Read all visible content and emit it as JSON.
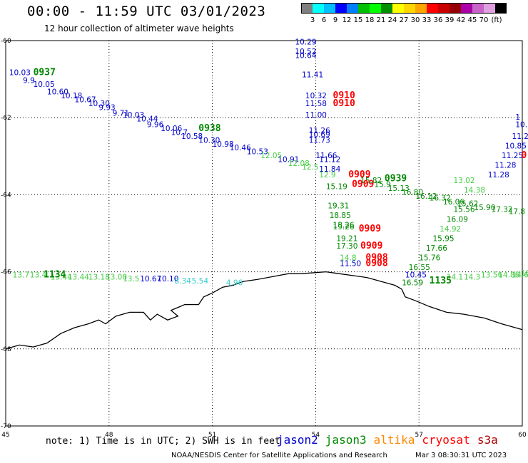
{
  "header": {
    "title": "00:00 - 11:59 UTC 03/01/2023",
    "subtitle": "12 hour collection of altimeter wave heights"
  },
  "colorbar": {
    "unit": "(ft)",
    "colors": [
      "#7f7f7f",
      "#00ffff",
      "#00bfff",
      "#0000ff",
      "#0080ff",
      "#00c000",
      "#00ff00",
      "#009000",
      "#ffff00",
      "#ffd700",
      "#ffa500",
      "#ff0000",
      "#c80000",
      "#960000",
      "#aa00aa",
      "#c864c8",
      "#e0a0e0",
      "#000000"
    ],
    "labels": [
      "3",
      "6",
      "9",
      "12",
      "15",
      "18",
      "21",
      "24",
      "27",
      "30",
      "33",
      "36",
      "39",
      "42",
      "45",
      "70"
    ]
  },
  "axes": {
    "lon_ticks": [
      "45",
      "48",
      "51",
      "54",
      "57",
      "60"
    ],
    "lat_ticks": [
      "-60",
      "-62",
      "-64",
      "-66",
      "-68",
      "-70"
    ]
  },
  "colors": {
    "jason2": "#0000cc",
    "jason3": "#008800",
    "jason3_light": "#44cc44",
    "altika": "#ff8800",
    "cryosat": "#ff0000",
    "s3a": "#aa0000",
    "cyan": "#33cccc"
  },
  "track_labels": [
    {
      "text": "10.03",
      "c": "jason2",
      "lon": 45.1,
      "lat": -60.9
    },
    {
      "text": "9.9",
      "c": "jason2",
      "lon": 45.5,
      "lat": -61.1
    },
    {
      "text": "10.05",
      "c": "jason2",
      "lon": 45.8,
      "lat": -61.2
    },
    {
      "text": "10.60",
      "c": "jason2",
      "lon": 46.2,
      "lat": -61.4
    },
    {
      "text": "10.18",
      "c": "jason2",
      "lon": 46.6,
      "lat": -61.5
    },
    {
      "text": "10.67",
      "c": "jason2",
      "lon": 47.0,
      "lat": -61.6
    },
    {
      "text": "10.30",
      "c": "jason2",
      "lon": 47.4,
      "lat": -61.7
    },
    {
      "text": "9.93",
      "c": "jason2",
      "lon": 47.7,
      "lat": -61.8
    },
    {
      "text": "9.71",
      "c": "jason2",
      "lon": 48.1,
      "lat": -61.95
    },
    {
      "text": "10.03",
      "c": "jason2",
      "lon": 48.4,
      "lat": -62.0
    },
    {
      "text": "10.44",
      "c": "jason2",
      "lon": 48.8,
      "lat": -62.1
    },
    {
      "text": "9.96",
      "c": "jason2",
      "lon": 49.1,
      "lat": -62.25
    },
    {
      "text": "10.06",
      "c": "jason2",
      "lon": 49.5,
      "lat": -62.35
    },
    {
      "text": "10.7",
      "c": "jason2",
      "lon": 49.8,
      "lat": -62.45
    },
    {
      "text": "10.58",
      "c": "jason2",
      "lon": 50.1,
      "lat": -62.55
    },
    {
      "text": "10.30",
      "c": "jason2",
      "lon": 50.6,
      "lat": -62.65
    },
    {
      "text": "10.98",
      "c": "jason2",
      "lon": 51.0,
      "lat": -62.75
    },
    {
      "text": "10.46",
      "c": "jason2",
      "lon": 51.5,
      "lat": -62.85
    },
    {
      "text": "10.53",
      "c": "jason2",
      "lon": 52.0,
      "lat": -62.95
    },
    {
      "text": "10.91",
      "c": "jason2",
      "lon": 52.9,
      "lat": -63.15
    },
    {
      "text": "12.05",
      "c": "jason3_light",
      "lon": 52.4,
      "lat": -63.05
    },
    {
      "text": "12.08",
      "c": "jason3_light",
      "lon": 53.2,
      "lat": -63.25
    },
    {
      "text": "12.5",
      "c": "jason3_light",
      "lon": 53.6,
      "lat": -63.35
    },
    {
      "text": "12.9",
      "c": "jason3_light",
      "lon": 54.1,
      "lat": -63.55
    },
    {
      "text": "10.29",
      "c": "jason2",
      "lon": 53.4,
      "lat": -60.1
    },
    {
      "text": "10.52",
      "c": "jason2",
      "lon": 53.4,
      "lat": -60.35
    },
    {
      "text": "10.64",
      "c": "jason2",
      "lon": 53.4,
      "lat": -60.45
    },
    {
      "text": "11.41",
      "c": "jason2",
      "lon": 53.6,
      "lat": -60.95
    },
    {
      "text": "10.32",
      "c": "jason2",
      "lon": 53.7,
      "lat": -61.5
    },
    {
      "text": "11.58",
      "c": "jason2",
      "lon": 53.7,
      "lat": -61.7
    },
    {
      "text": "11.00",
      "c": "jason2",
      "lon": 53.7,
      "lat": -62.0
    },
    {
      "text": "11.26",
      "c": "jason2",
      "lon": 53.8,
      "lat": -62.4
    },
    {
      "text": "10.69",
      "c": "jason2",
      "lon": 53.8,
      "lat": -62.5
    },
    {
      "text": "11.73",
      "c": "jason2",
      "lon": 53.8,
      "lat": -62.65
    },
    {
      "text": "11.66",
      "c": "jason2",
      "lon": 54.0,
      "lat": -63.05
    },
    {
      "text": "11.12",
      "c": "jason2",
      "lon": 54.1,
      "lat": -63.15
    },
    {
      "text": "11.84",
      "c": "jason2",
      "lon": 54.1,
      "lat": -63.4
    },
    {
      "text": "15.19",
      "c": "jason3",
      "lon": 54.3,
      "lat": -63.85
    },
    {
      "text": "19.31",
      "c": "jason3",
      "lon": 54.35,
      "lat": -64.35
    },
    {
      "text": "18.85",
      "c": "jason3",
      "lon": 54.4,
      "lat": -64.6
    },
    {
      "text": "18.26",
      "c": "jason3",
      "lon": 54.5,
      "lat": -64.85
    },
    {
      "text": "19.26",
      "c": "jason3",
      "lon": 54.5,
      "lat": -64.9
    },
    {
      "text": "19.21",
      "c": "jason3",
      "lon": 54.6,
      "lat": -65.2
    },
    {
      "text": "17.30",
      "c": "jason3",
      "lon": 54.6,
      "lat": -65.4
    },
    {
      "text": "14.8",
      "c": "jason3_light",
      "lon": 54.7,
      "lat": -65.7
    },
    {
      "text": "11.50",
      "c": "jason2",
      "lon": 54.7,
      "lat": -65.85
    },
    {
      "text": "15.82",
      "c": "jason3",
      "lon": 55.3,
      "lat": -63.7
    },
    {
      "text": "15.9",
      "c": "jason3",
      "lon": 55.7,
      "lat": -63.8
    },
    {
      "text": "15.13",
      "c": "jason3",
      "lon": 56.1,
      "lat": -63.9
    },
    {
      "text": "16.80",
      "c": "jason3",
      "lon": 56.5,
      "lat": -64.0
    },
    {
      "text": "16.12",
      "c": "jason3",
      "lon": 56.9,
      "lat": -64.1
    },
    {
      "text": "16.32",
      "c": "jason3",
      "lon": 57.3,
      "lat": -64.15
    },
    {
      "text": "16.06",
      "c": "jason3",
      "lon": 57.7,
      "lat": -64.25
    },
    {
      "text": "15.62",
      "c": "jason3",
      "lon": 58.1,
      "lat": -64.3
    },
    {
      "text": "15.56",
      "c": "jason3",
      "lon": 58.0,
      "lat": -64.45
    },
    {
      "text": "15.90",
      "c": "jason3",
      "lon": 58.6,
      "lat": -64.4
    },
    {
      "text": "17.32",
      "c": "jason3",
      "lon": 59.1,
      "lat": -64.45
    },
    {
      "text": "17.8",
      "c": "jason3",
      "lon": 59.6,
      "lat": -64.5
    },
    {
      "text": "14.38",
      "c": "jason3_light",
      "lon": 58.3,
      "lat": -63.95
    },
    {
      "text": "13.02",
      "c": "jason3_light",
      "lon": 58.0,
      "lat": -63.7
    },
    {
      "text": "16.09",
      "c": "jason3",
      "lon": 57.8,
      "lat": -64.7
    },
    {
      "text": "14.92",
      "c": "jason3_light",
      "lon": 57.6,
      "lat": -64.95
    },
    {
      "text": "15.95",
      "c": "jason3",
      "lon": 57.4,
      "lat": -65.2
    },
    {
      "text": "17.66",
      "c": "jason3",
      "lon": 57.2,
      "lat": -65.45
    },
    {
      "text": "15.76",
      "c": "jason3",
      "lon": 57.0,
      "lat": -65.7
    },
    {
      "text": "16.55",
      "c": "jason3",
      "lon": 56.7,
      "lat": -65.95
    },
    {
      "text": "10.45",
      "c": "jason2",
      "lon": 56.6,
      "lat": -66.15
    },
    {
      "text": "16.59",
      "c": "jason3",
      "lon": 56.5,
      "lat": -66.35
    },
    {
      "text": "11.28",
      "c": "jason2",
      "lon": 59.0,
      "lat": -63.55
    },
    {
      "text": "11.28",
      "c": "jason2",
      "lon": 59.2,
      "lat": -63.3
    },
    {
      "text": "11.25",
      "c": "jason2",
      "lon": 59.4,
      "lat": -63.05
    },
    {
      "text": "10.85",
      "c": "jason2",
      "lon": 59.5,
      "lat": -62.8
    },
    {
      "text": "11.2",
      "c": "jason2",
      "lon": 59.7,
      "lat": -62.55
    },
    {
      "text": "10.",
      "c": "jason2",
      "lon": 59.8,
      "lat": -62.25
    },
    {
      "text": "1",
      "c": "jason2",
      "lon": 59.8,
      "lat": -62.05
    },
    {
      "text": "13.7",
      "c": "jason3_light",
      "lon": 45.2,
      "lat": -66.15
    },
    {
      "text": "13.4",
      "c": "jason3_light",
      "lon": 45.7,
      "lat": -66.15
    },
    {
      "text": "13.44",
      "c": "jason3_light",
      "lon": 46.3,
      "lat": -66.2
    },
    {
      "text": "13.44",
      "c": "jason3_light",
      "lon": 46.8,
      "lat": -66.2
    },
    {
      "text": "13.18",
      "c": "jason3_light",
      "lon": 47.4,
      "lat": -66.2
    },
    {
      "text": "13.00",
      "c": "jason3_light",
      "lon": 47.9,
      "lat": -66.2
    },
    {
      "text": "13.5",
      "c": "jason3_light",
      "lon": 48.4,
      "lat": -66.25
    },
    {
      "text": "10.67",
      "c": "jason2",
      "lon": 48.9,
      "lat": -66.25
    },
    {
      "text": "10.10",
      "c": "jason2",
      "lon": 49.4,
      "lat": -66.25
    },
    {
      "text": "8.34",
      "c": "cyan",
      "lon": 49.9,
      "lat": -66.3
    },
    {
      "text": "5.54",
      "c": "cyan",
      "lon": 50.4,
      "lat": -66.3
    },
    {
      "text": "4.96",
      "c": "cyan",
      "lon": 51.4,
      "lat": -66.35
    },
    {
      "text": "14.1",
      "c": "jason3_light",
      "lon": 57.8,
      "lat": -66.2
    },
    {
      "text": "14.3",
      "c": "jason3_light",
      "lon": 58.3,
      "lat": -66.2
    },
    {
      "text": "13.56",
      "c": "jason3_light",
      "lon": 58.8,
      "lat": -66.15
    },
    {
      "text": "14.86",
      "c": "jason3_light",
      "lon": 59.3,
      "lat": -66.15
    },
    {
      "text": "14.6",
      "c": "jason3_light",
      "lon": 59.7,
      "lat": -66.15
    },
    {
      "text": "16",
      "c": "jason3_light",
      "lon": 59.95,
      "lat": -66.1
    }
  ],
  "time_labels": [
    {
      "text": "0937",
      "c": "jason3",
      "lon": 45.8,
      "lat": -60.9
    },
    {
      "text": "0938",
      "c": "jason3",
      "lon": 50.6,
      "lat": -62.35
    },
    {
      "text": "0939",
      "c": "jason3",
      "lon": 56.0,
      "lat": -63.65
    },
    {
      "text": "1134",
      "c": "jason3",
      "lon": 46.1,
      "lat": -66.15
    },
    {
      "text": "1135",
      "c": "jason3",
      "lon": 57.3,
      "lat": -66.3
    },
    {
      "text": "0910",
      "c": "cryosat",
      "lon": 54.5,
      "lat": -61.5
    },
    {
      "text": "0910",
      "c": "cryosat",
      "lon": 54.5,
      "lat": -61.7
    },
    {
      "text": "0909",
      "c": "cryosat",
      "lon": 54.95,
      "lat": -63.55
    },
    {
      "text": "0909",
      "c": "cryosat",
      "lon": 55.05,
      "lat": -63.8
    },
    {
      "text": "0909",
      "c": "cryosat",
      "lon": 55.25,
      "lat": -64.95
    },
    {
      "text": "0909",
      "c": "cryosat",
      "lon": 55.3,
      "lat": -65.4
    },
    {
      "text": "0908",
      "c": "cryosat",
      "lon": 55.45,
      "lat": -65.7
    },
    {
      "text": "0908",
      "c": "cryosat",
      "lon": 55.45,
      "lat": -65.85
    },
    {
      "text": "0",
      "c": "cryosat",
      "lon": 59.97,
      "lat": -63.05
    }
  ],
  "footer": {
    "note": "note: 1) Time is in UTC; 2) SWH is in feet",
    "legend": [
      {
        "name": "jason2",
        "c": "jason2"
      },
      {
        "name": "jason3",
        "c": "jason3"
      },
      {
        "name": "altika",
        "c": "altika"
      },
      {
        "name": "cryosat",
        "c": "cryosat"
      },
      {
        "name": "s3a",
        "c": "s3a"
      }
    ],
    "credit": "NOAA/NESDIS Center for Satellite Applications and Research",
    "timestamp": "Mar  3 08:30:31 UTC 2023"
  },
  "map": {
    "lon_range": [
      45,
      60
    ],
    "lat_range": [
      -60,
      -70
    ],
    "coastline": [
      [
        53.55,
        -66.05
      ],
      [
        53.2,
        -66.05
      ],
      [
        52.9,
        -66.1
      ],
      [
        52.3,
        -66.2
      ],
      [
        51.9,
        -66.25
      ],
      [
        51.6,
        -66.35
      ],
      [
        51.3,
        -66.4
      ],
      [
        51.0,
        -66.55
      ],
      [
        50.75,
        -66.65
      ],
      [
        50.6,
        -66.85
      ],
      [
        50.2,
        -66.85
      ],
      [
        49.8,
        -67.0
      ],
      [
        50.0,
        -67.15
      ],
      [
        49.7,
        -67.25
      ],
      [
        49.4,
        -67.1
      ],
      [
        49.2,
        -67.25
      ],
      [
        49.0,
        -67.05
      ],
      [
        48.6,
        -67.05
      ],
      [
        48.2,
        -67.15
      ],
      [
        47.9,
        -67.35
      ],
      [
        47.7,
        -67.25
      ],
      [
        47.4,
        -67.35
      ],
      [
        47.0,
        -67.45
      ],
      [
        46.6,
        -67.6
      ],
      [
        46.2,
        -67.85
      ],
      [
        45.8,
        -67.95
      ],
      [
        45.4,
        -67.9
      ],
      [
        45.0,
        -68.0
      ]
    ],
    "coastline_east": [
      [
        53.55,
        -66.05
      ],
      [
        54.3,
        -66.0
      ],
      [
        54.7,
        -66.05
      ],
      [
        55.1,
        -66.1
      ],
      [
        55.5,
        -66.15
      ],
      [
        55.9,
        -66.25
      ],
      [
        56.3,
        -66.35
      ],
      [
        56.5,
        -66.45
      ],
      [
        56.6,
        -66.65
      ],
      [
        56.9,
        -66.75
      ],
      [
        57.3,
        -66.9
      ],
      [
        57.8,
        -67.05
      ],
      [
        58.3,
        -67.1
      ],
      [
        58.9,
        -67.2
      ],
      [
        59.4,
        -67.35
      ],
      [
        60.0,
        -67.5
      ]
    ]
  }
}
